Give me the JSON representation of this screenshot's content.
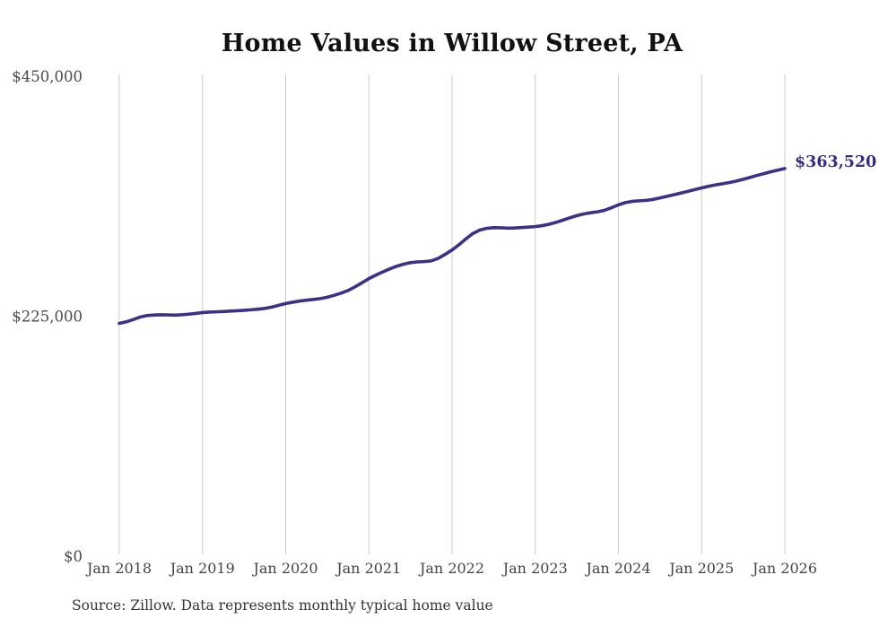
{
  "chart": {
    "title": "Home Values in Willow Street, PA",
    "end_label": "$363,520",
    "source": "Source: Zillow. Data represents monthly typical home value"
  },
  "chart_data": {
    "type": "line",
    "title": "Home Values in Willow Street, PA",
    "xlabel": "",
    "ylabel": "",
    "ylim": [
      0,
      450000
    ],
    "grid": "vertical-only",
    "gridline_color": "#cccccc",
    "line_color": "#3a3287",
    "annotation": {
      "text": "$363,520",
      "color": "#332f85"
    },
    "y_ticks": [
      {
        "label": "$450,000",
        "value": 450000
      },
      {
        "label": "$225,000",
        "value": 225000
      },
      {
        "label": "$0",
        "value": 0
      }
    ],
    "x_tick_labels": [
      "Jan 2018",
      "Jan 2019",
      "Jan 2020",
      "Jan 2021",
      "Jan 2022",
      "Jan 2023",
      "Jan 2024",
      "Jan 2025",
      "Jan 2026"
    ],
    "frequency": "monthly",
    "x_start": "Jan 2018",
    "x_end": "Jan 2026",
    "series": [
      {
        "name": "Typical home value",
        "values": [
          218300,
          219700,
          221800,
          224200,
          225600,
          226100,
          226300,
          226200,
          226000,
          226300,
          226900,
          227600,
          228400,
          228800,
          229100,
          229400,
          229800,
          230100,
          230500,
          231000,
          231600,
          232300,
          233500,
          235200,
          236900,
          238100,
          239200,
          240000,
          240700,
          241500,
          242800,
          244600,
          246600,
          249100,
          252500,
          256300,
          260200,
          263500,
          266500,
          269300,
          271800,
          273800,
          275200,
          275900,
          276200,
          276900,
          279200,
          283000,
          287100,
          292000,
          297500,
          302500,
          305800,
          307400,
          308000,
          307900,
          307600,
          307700,
          308100,
          308500,
          309000,
          309900,
          311200,
          313000,
          315100,
          317300,
          319300,
          320900,
          322000,
          322900,
          324300,
          326700,
          329400,
          331500,
          332700,
          333200,
          333600,
          334500,
          335900,
          337400,
          338900,
          340400,
          342000,
          343700,
          345300,
          346800,
          348100,
          349200,
          350300,
          351700,
          353400,
          355200,
          357000,
          358700,
          360400,
          362000,
          363520
        ]
      }
    ]
  }
}
